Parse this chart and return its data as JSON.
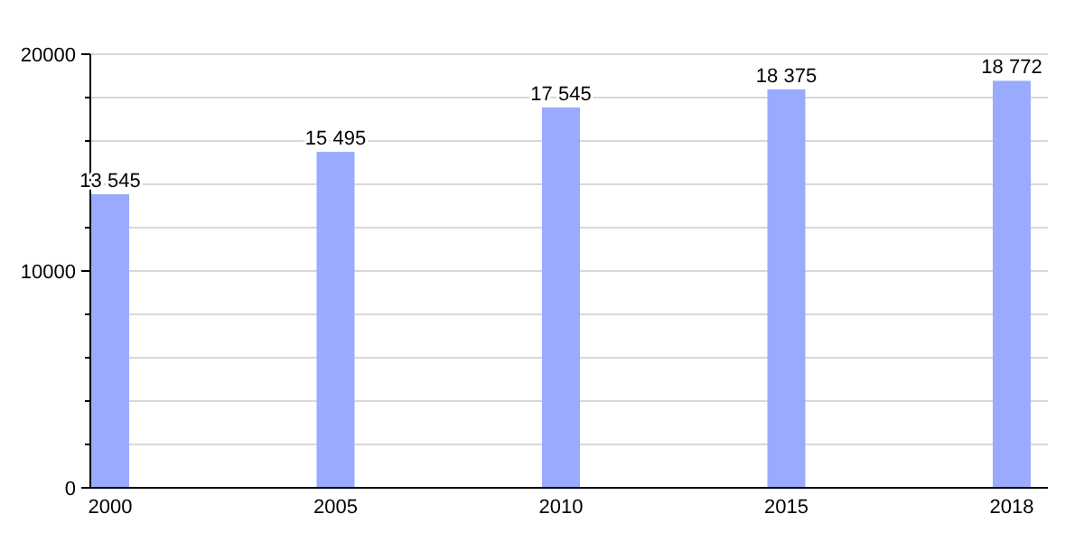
{
  "chart_data": {
    "type": "bar",
    "categories": [
      "2000",
      "2005",
      "2010",
      "2015",
      "2018"
    ],
    "values": [
      13545,
      15495,
      17545,
      18375,
      18772
    ],
    "value_labels": [
      "13 545",
      "15 495",
      "17 545",
      "18 375",
      "18 772"
    ],
    "color": "#99aaff",
    "ylim": [
      0,
      20000
    ],
    "yticks": [
      0,
      {
        "value": 2000,
        "label": null
      },
      {
        "value": 4000,
        "label": null
      },
      {
        "value": 6000,
        "label": null
      },
      {
        "value": 8000,
        "label": null
      },
      10000,
      {
        "value": 12000,
        "label": null
      },
      {
        "value": 14000,
        "label": null
      },
      {
        "value": 16000,
        "label": null
      },
      {
        "value": 18000,
        "label": null
      },
      20000
    ],
    "grid": true
  }
}
